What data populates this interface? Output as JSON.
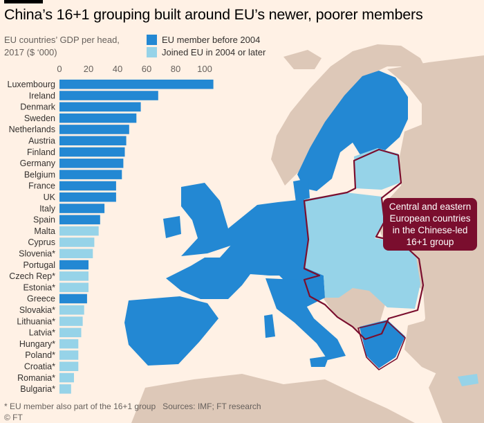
{
  "title": "China’s 16+1 grouping built around EU’s newer, poorer members",
  "subtitle": "EU countries’ GDP per head,\n2017 ($ ‘000)",
  "legend": [
    {
      "label": "EU member before 2004",
      "color": "#2388d3"
    },
    {
      "label": "Joined EU in 2004 or later",
      "color": "#96d3e8"
    }
  ],
  "callout": "Central and eastern European countries in the Chinese-led 16+1 group",
  "footnote": "* EU member also part of the 16+1 group",
  "sources": "Sources: IMF; FT research",
  "credit": "© FT",
  "colors": {
    "old_member": "#2388d3",
    "new_member": "#96d3e8",
    "other_land": "#ddc8b8",
    "sea": "#fff1e5",
    "outline": "#7a0e2e"
  },
  "chart_data": {
    "type": "bar",
    "orientation": "horizontal",
    "title": "EU countries’ GDP per head, 2017 ($ ‘000)",
    "xlim": [
      0,
      110
    ],
    "xticks": [
      0,
      20,
      40,
      60,
      80,
      100
    ],
    "categories": [
      "Luxembourg",
      "Ireland",
      "Denmark",
      "Sweden",
      "Netherlands",
      "Austria",
      "Finland",
      "Germany",
      "Belgium",
      "France",
      "UK",
      "Italy",
      "Spain",
      "Malta",
      "Cyprus",
      "Slovenia*",
      "Portugal",
      "Czech Rep*",
      "Estonia*",
      "Greece",
      "Slovakia*",
      "Lithuania*",
      "Latvia*",
      "Hungary*",
      "Poland*",
      "Croatia*",
      "Romania*",
      "Bulgaria*"
    ],
    "values": [
      106,
      68,
      56,
      53,
      48,
      46,
      45,
      44,
      43,
      39,
      39,
      31,
      28,
      27,
      24,
      23,
      20,
      20,
      20,
      19,
      17,
      16,
      15,
      13,
      13,
      13,
      10,
      8
    ],
    "group": [
      "old",
      "old",
      "old",
      "old",
      "old",
      "old",
      "old",
      "old",
      "old",
      "old",
      "old",
      "old",
      "old",
      "new",
      "new",
      "new",
      "old",
      "new",
      "new",
      "old",
      "new",
      "new",
      "new",
      "new",
      "new",
      "new",
      "new",
      "new"
    ]
  }
}
